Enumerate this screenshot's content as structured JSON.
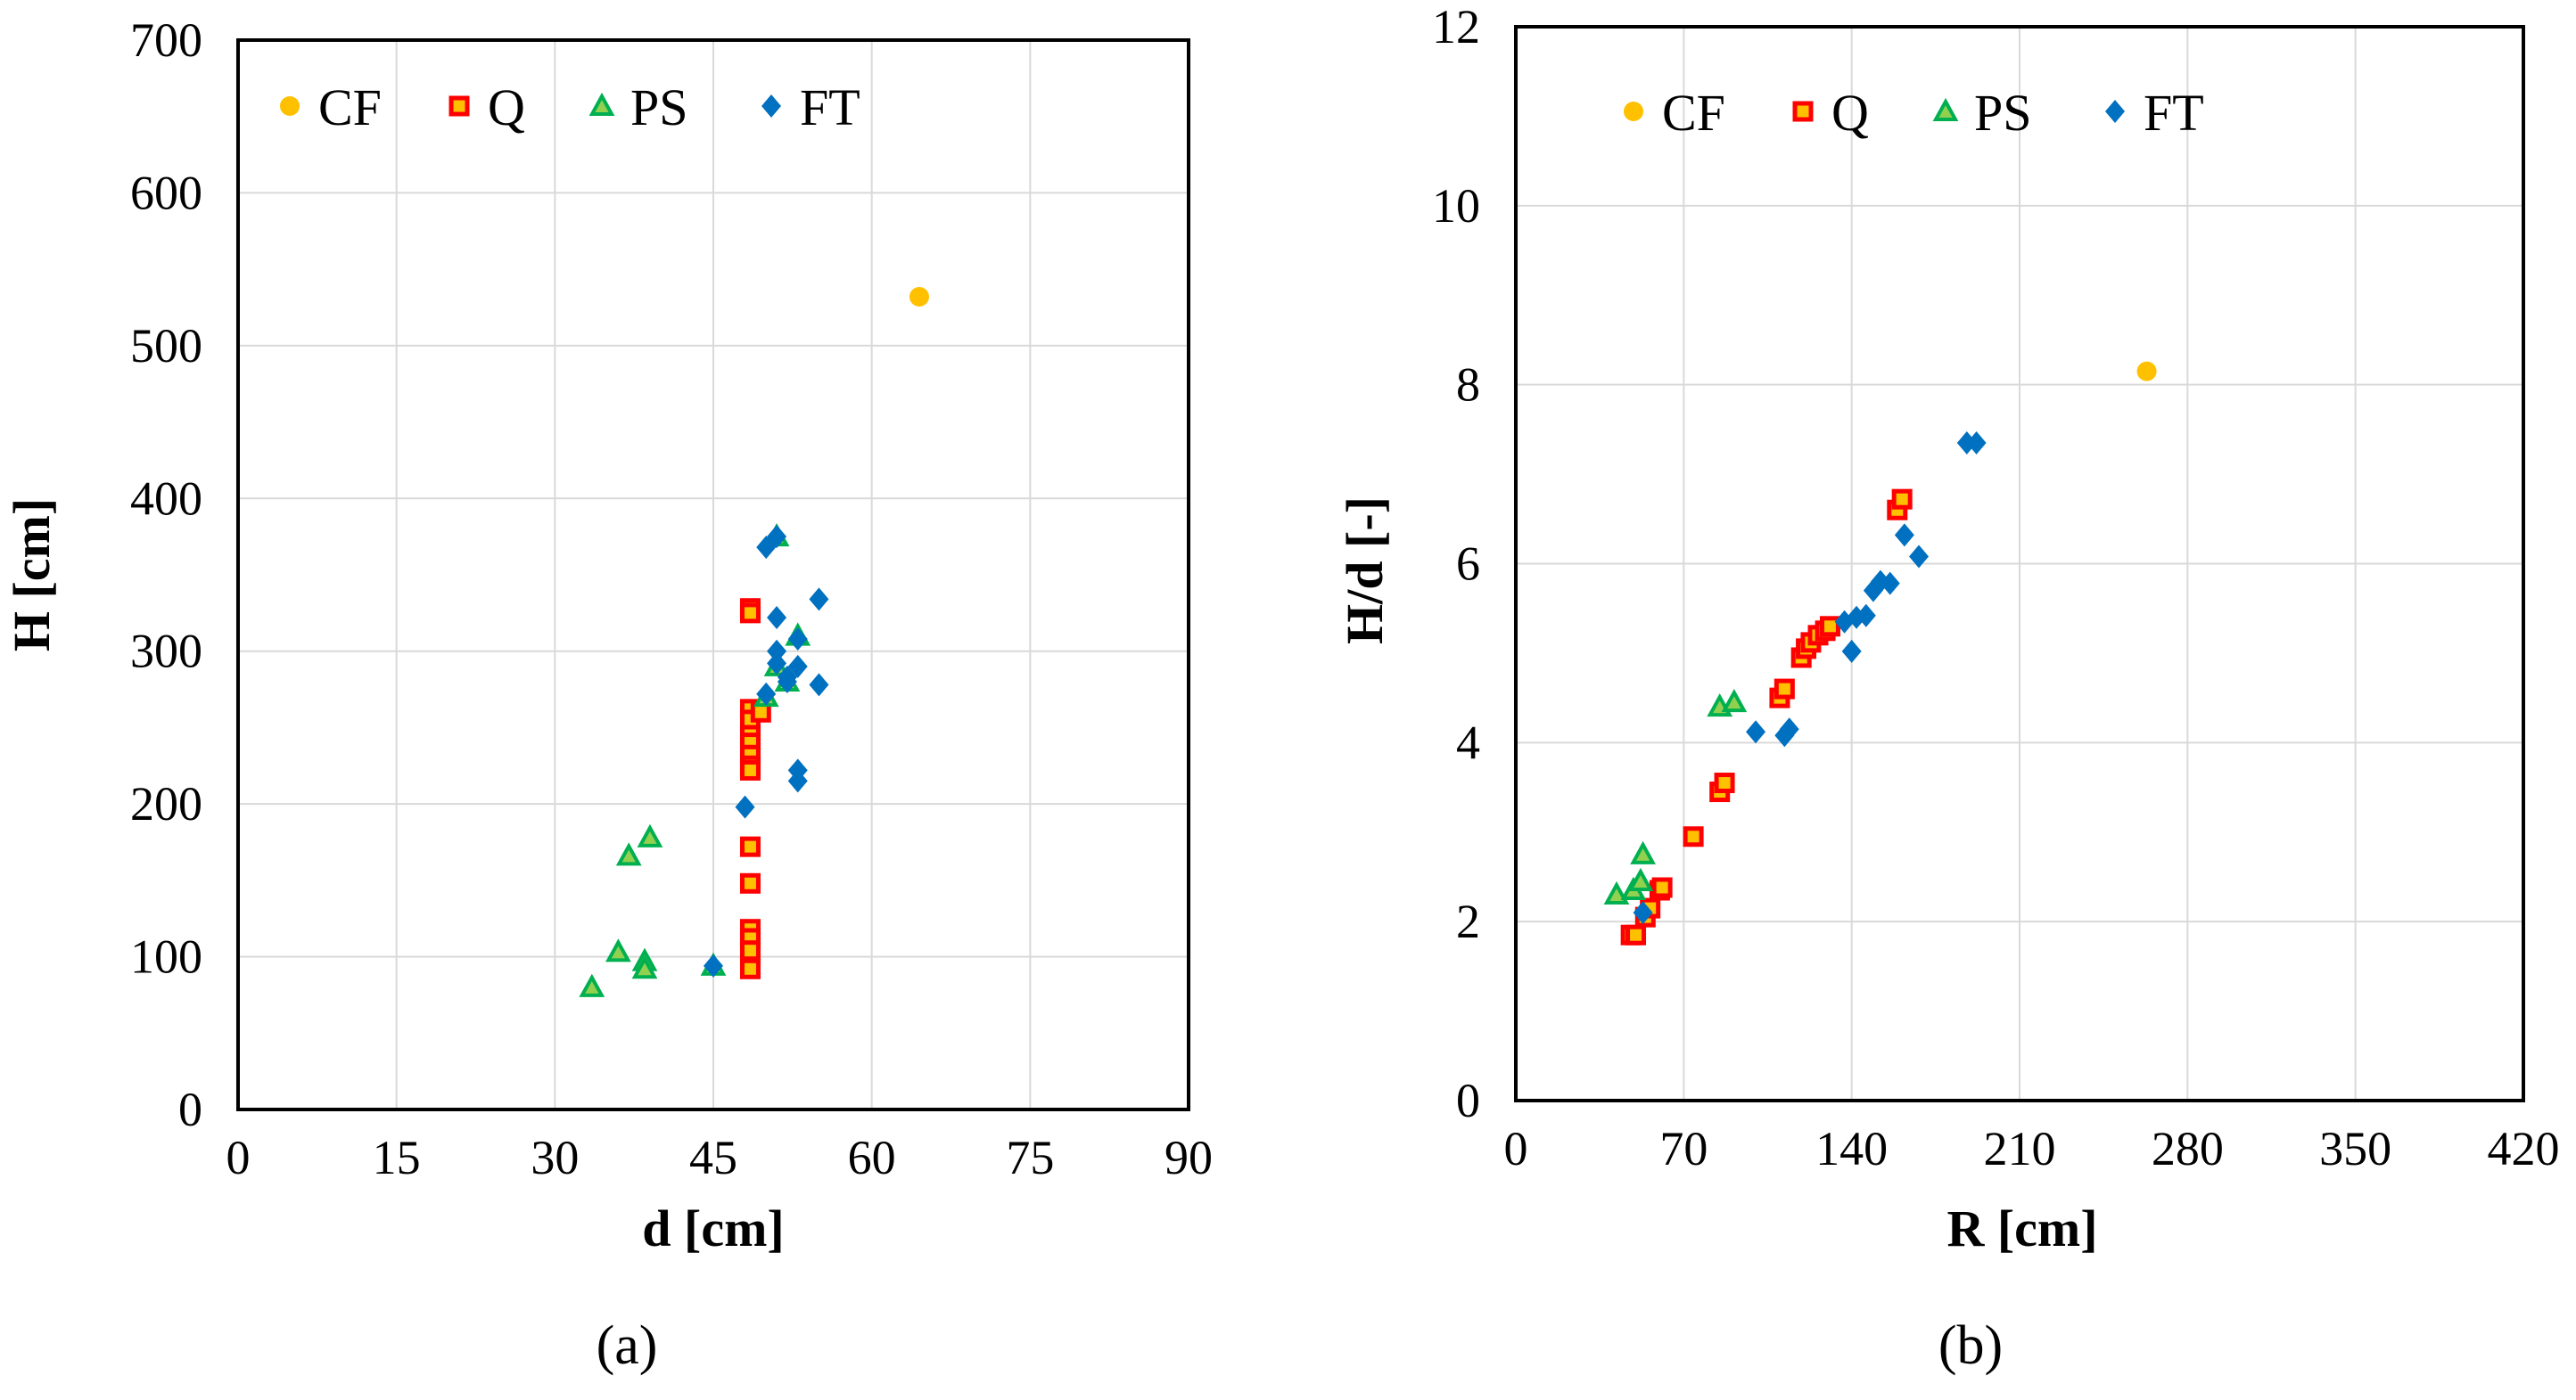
{
  "chart_data": [
    {
      "type": "scatter",
      "panel_label": "(a)",
      "title": "",
      "xlabel": "d [cm]",
      "ylabel": "H [cm]",
      "xlim": [
        0,
        90
      ],
      "ylim": [
        0,
        700
      ],
      "xticks": [
        0,
        15,
        30,
        45,
        60,
        75,
        90
      ],
      "yticks": [
        0,
        100,
        200,
        300,
        400,
        500,
        600,
        700
      ],
      "grid": true,
      "legend_position": "top-left",
      "series": [
        {
          "name": "CF",
          "marker": "circle",
          "color": "#FFC000",
          "points": [
            [
              64.5,
              532
            ]
          ]
        },
        {
          "name": "Q",
          "marker": "square",
          "color": "#FF0000",
          "points": [
            [
              48.5,
              328
            ],
            [
              48.5,
              325
            ],
            [
              48.5,
              262
            ],
            [
              48.5,
              255
            ],
            [
              48.5,
              245
            ],
            [
              48.5,
              240
            ],
            [
              48.5,
              232
            ],
            [
              48.5,
              225
            ],
            [
              48.5,
              222
            ],
            [
              49.5,
              260
            ],
            [
              48.5,
              172
            ],
            [
              48.5,
              148
            ],
            [
              48.5,
              118
            ],
            [
              48.5,
              112
            ],
            [
              48.5,
              104
            ],
            [
              48.5,
              92
            ]
          ]
        },
        {
          "name": "PS",
          "marker": "triangle",
          "color": "#00B050",
          "points": [
            [
              51,
              375
            ],
            [
              50,
              270
            ],
            [
              53,
              310
            ],
            [
              52,
              280
            ],
            [
              51,
              290
            ],
            [
              39,
              178
            ],
            [
              37,
              166
            ],
            [
              36,
              103
            ],
            [
              38.5,
              97
            ],
            [
              38.5,
              92
            ],
            [
              33.5,
              80
            ],
            [
              45,
              94
            ]
          ]
        },
        {
          "name": "FT",
          "marker": "diamond",
          "color": "#0070C0",
          "points": [
            [
              51,
              375
            ],
            [
              50,
              368
            ],
            [
              55,
              334
            ],
            [
              51,
              322
            ],
            [
              53,
              308
            ],
            [
              51,
              300
            ],
            [
              51,
              292
            ],
            [
              53,
              290
            ],
            [
              52,
              283
            ],
            [
              52,
              280
            ],
            [
              55,
              278
            ],
            [
              50,
              272
            ],
            [
              53,
              222
            ],
            [
              53,
              215
            ],
            [
              48,
              198
            ],
            [
              45,
              94
            ]
          ]
        }
      ]
    },
    {
      "type": "scatter",
      "panel_label": "(b)",
      "title": "",
      "xlabel": "R [cm]",
      "ylabel": "H/d  [-]",
      "xlim": [
        0,
        420
      ],
      "ylim": [
        0,
        12
      ],
      "xticks": [
        0,
        70,
        140,
        210,
        280,
        350,
        420
      ],
      "yticks": [
        0,
        2,
        4,
        6,
        8,
        10,
        12
      ],
      "grid": true,
      "legend_position": "top-left",
      "series": [
        {
          "name": "CF",
          "marker": "circle",
          "color": "#FFC000",
          "points": [
            [
              263,
              8.15
            ]
          ]
        },
        {
          "name": "Q",
          "marker": "square",
          "color": "#FF0000",
          "points": [
            [
              48,
              1.85
            ],
            [
              50,
              1.85
            ],
            [
              54,
              2.05
            ],
            [
              56,
              2.15
            ],
            [
              60,
              2.35
            ],
            [
              61,
              2.38
            ],
            [
              74,
              2.95
            ],
            [
              85,
              3.45
            ],
            [
              87,
              3.55
            ],
            [
              110,
              4.5
            ],
            [
              112,
              4.6
            ],
            [
              119,
              4.95
            ],
            [
              121,
              5.05
            ],
            [
              123,
              5.12
            ],
            [
              126,
              5.2
            ],
            [
              129,
              5.25
            ],
            [
              131,
              5.3
            ],
            [
              159,
              6.6
            ],
            [
              161,
              6.72
            ]
          ]
        },
        {
          "name": "PS",
          "marker": "triangle",
          "color": "#00B050",
          "points": [
            [
              42,
              2.3
            ],
            [
              49,
              2.35
            ],
            [
              52,
              2.45
            ],
            [
              53,
              2.75
            ],
            [
              85,
              4.4
            ],
            [
              91,
              4.45
            ]
          ]
        },
        {
          "name": "FT",
          "marker": "diamond",
          "color": "#0070C0",
          "points": [
            [
              53,
              2.1
            ],
            [
              100,
              4.12
            ],
            [
              112,
              4.08
            ],
            [
              114,
              4.15
            ],
            [
              140,
              5.02
            ],
            [
              137,
              5.35
            ],
            [
              142,
              5.4
            ],
            [
              146,
              5.42
            ],
            [
              149,
              5.7
            ],
            [
              152,
              5.8
            ],
            [
              156,
              5.78
            ],
            [
              162,
              6.32
            ],
            [
              168,
              6.08
            ],
            [
              188,
              7.35
            ],
            [
              192,
              7.35
            ]
          ]
        }
      ]
    }
  ]
}
